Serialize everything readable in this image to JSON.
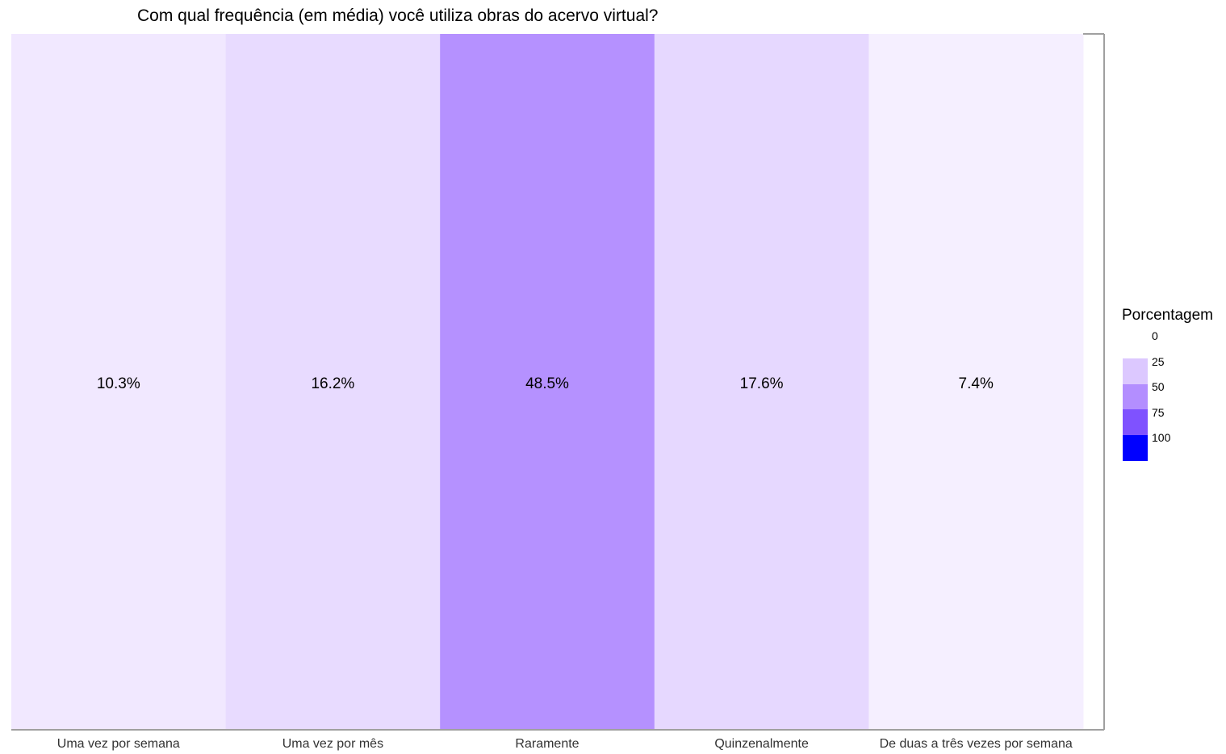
{
  "chart_data": {
    "type": "heatmap",
    "title": "Com qual frequência (em média) você utiliza obras do acervo virtual?",
    "categories": [
      "Uma vez por semana",
      "Uma vez por mês",
      "Raramente",
      "Quinzenalmente",
      "De duas a três vezes por semana"
    ],
    "values": [
      10.3,
      16.2,
      48.5,
      17.6,
      7.4
    ],
    "value_labels": [
      "10.3%",
      "16.2%",
      "48.5%",
      "17.6%",
      "7.4%"
    ],
    "legend": {
      "title": "Porcentagem",
      "ticks": [
        "0",
        "25",
        "50",
        "75",
        "100"
      ],
      "colors": [
        "#dcc8ff",
        "#b38eff",
        "#7f52ff",
        "#0000ff"
      ],
      "placement": "right"
    },
    "color_scale": {
      "domain": [
        0,
        25,
        50,
        75,
        100
      ],
      "colors": [
        "#ffffff",
        "#dcc8ff",
        "#b38eff",
        "#7f52ff",
        "#0000ff"
      ]
    },
    "grid": false
  }
}
